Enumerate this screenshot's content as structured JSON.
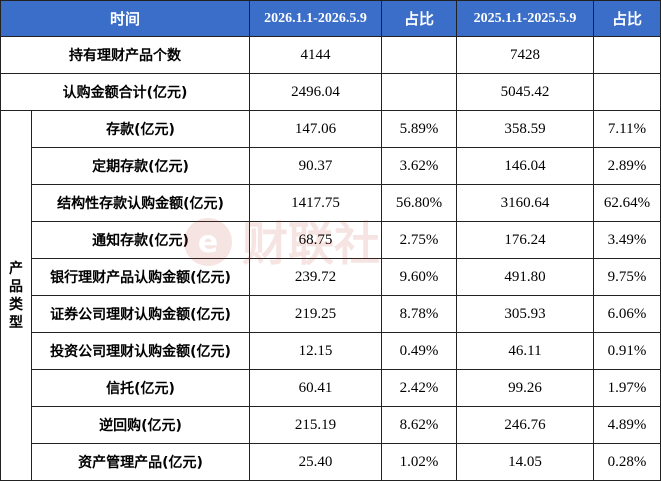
{
  "header": {
    "time": "时间",
    "period_2026": "2026.1.1-2026.5.9",
    "share_1": "占比",
    "period_2025": "2025.1.1-2025.5.9",
    "share_2": "占比"
  },
  "summary": [
    {
      "label": "持有理财产品个数",
      "v2026": "4144",
      "v2025": "7428"
    },
    {
      "label": "认购金额合计(亿元)",
      "v2026": "2496.04",
      "v2025": "5045.42"
    }
  ],
  "group_label": [
    "产",
    "品",
    "类",
    "型"
  ],
  "rows": [
    {
      "label": "存款(亿元)",
      "v2026": "147.06",
      "p2026": "5.89%",
      "v2025": "358.59",
      "p2025": "7.11%"
    },
    {
      "label": "定期存款(亿元)",
      "v2026": "90.37",
      "p2026": "3.62%",
      "v2025": "146.04",
      "p2025": "2.89%"
    },
    {
      "label": "结构性存款认购金额(亿元)",
      "v2026": "1417.75",
      "p2026": "56.80%",
      "v2025": "3160.64",
      "p2025": "62.64%"
    },
    {
      "label": "通知存款(亿元)",
      "v2026": "68.75",
      "p2026": "2.75%",
      "v2025": "176.24",
      "p2025": "3.49%"
    },
    {
      "label": "银行理财产品认购金额(亿元)",
      "v2026": "239.72",
      "p2026": "9.60%",
      "v2025": "491.80",
      "p2025": "9.75%"
    },
    {
      "label": "证券公司理财认购金额(亿元)",
      "v2026": "219.25",
      "p2026": "8.78%",
      "v2025": "305.93",
      "p2025": "6.06%"
    },
    {
      "label": "投资公司理财认购金额(亿元)",
      "v2026": "12.15",
      "p2026": "0.49%",
      "v2025": "46.11",
      "p2025": "0.91%"
    },
    {
      "label": "信托(亿元)",
      "v2026": "60.41",
      "p2026": "2.42%",
      "v2025": "99.26",
      "p2025": "1.97%"
    },
    {
      "label": "逆回购(亿元)",
      "v2026": "215.19",
      "p2026": "8.62%",
      "v2025": "246.76",
      "p2025": "4.89%"
    },
    {
      "label": "资产管理产品(亿元)",
      "v2026": "25.40",
      "p2026": "1.02%",
      "v2025": "14.05",
      "p2025": "0.28%"
    }
  ],
  "watermark": {
    "text": "财联社",
    "color": "#c0392b"
  }
}
